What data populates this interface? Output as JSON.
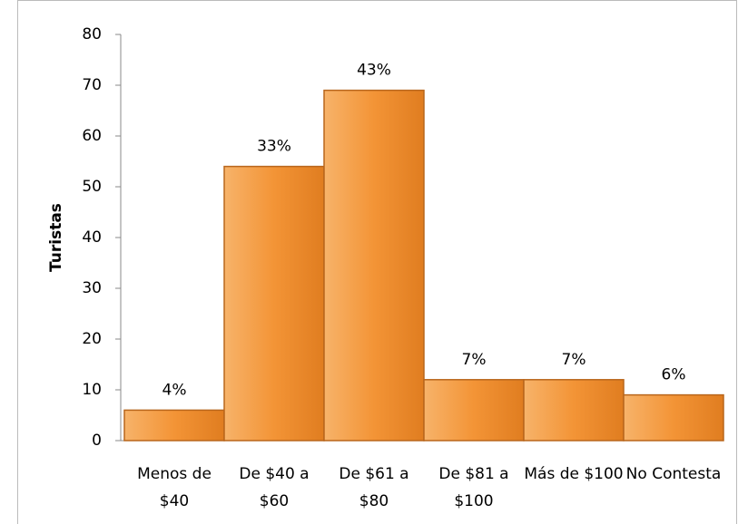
{
  "chart_data": {
    "type": "bar",
    "y_label": "Turistas",
    "categories": [
      "Menos de $40",
      "De $40 a $60",
      "De $61 a $80",
      "De $81 a $100",
      "Más de $100",
      "No Contesta"
    ],
    "values": [
      6,
      54,
      69,
      12,
      12,
      9
    ],
    "data_labels": [
      "4%",
      "33%",
      "43%",
      "7%",
      "7%",
      "6%"
    ],
    "color": "#f39436",
    "ylim": [
      0,
      80
    ],
    "yticks": [
      0,
      10,
      20,
      30,
      40,
      50,
      60,
      70,
      80
    ],
    "grid": false
  }
}
